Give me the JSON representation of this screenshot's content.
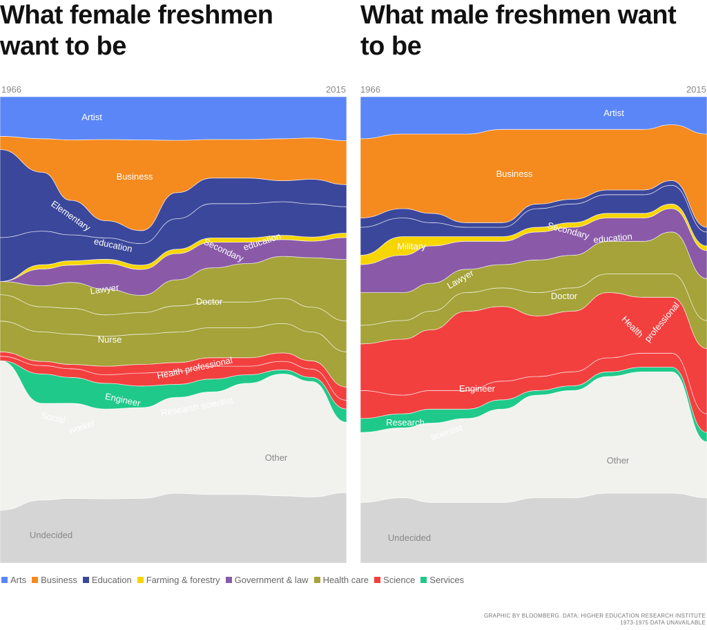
{
  "chart_data": [
    {
      "type": "area",
      "stacked": true,
      "normalized_percent": true,
      "title": "What female freshmen want to be",
      "x_start_label": "1966",
      "x_end_label": "2015",
      "x": [
        1966,
        1972,
        1976,
        1981,
        1986,
        1991,
        1996,
        2001,
        2006,
        2010,
        2015
      ],
      "series": [
        {
          "name": "Undecided",
          "category": "",
          "values": [
            12,
            15,
            15,
            15,
            15,
            16,
            16,
            16,
            16,
            16,
            16
          ]
        },
        {
          "name": "Other",
          "category": "",
          "values": [
            34,
            23,
            22,
            21,
            21,
            22,
            24,
            26,
            29,
            28,
            16
          ]
        },
        {
          "name": "Social worker",
          "category": "Services",
          "values": [
            0,
            7,
            6,
            6,
            5,
            3,
            3,
            2,
            1,
            1,
            3
          ]
        },
        {
          "name": "Research scientist",
          "category": "Science",
          "values": [
            1,
            2,
            2,
            2,
            3,
            3,
            3,
            2,
            2,
            2,
            2
          ]
        },
        {
          "name": "Engineer",
          "category": "Science",
          "values": [
            1,
            1,
            1,
            2,
            2,
            2,
            2,
            2,
            2,
            2,
            3
          ]
        },
        {
          "name": "Health professional",
          "category": "Health care",
          "values": [
            7,
            7,
            7,
            7,
            7,
            7,
            7,
            7,
            7,
            7,
            8
          ]
        },
        {
          "name": "Nurse",
          "category": "Health care",
          "values": [
            6,
            6,
            6,
            5,
            5,
            6,
            6,
            6,
            6,
            6,
            7
          ]
        },
        {
          "name": "Doctor",
          "category": "Health care",
          "values": [
            3,
            5,
            6,
            6,
            4,
            6,
            8,
            9,
            10,
            12,
            14
          ]
        },
        {
          "name": "Lawyer",
          "category": "Government & law",
          "values": [
            0,
            4,
            4,
            6,
            6,
            6,
            6,
            5,
            4,
            4,
            5
          ]
        },
        {
          "name": "Farming & forestry",
          "category": "Farming & forestry",
          "values": [
            0,
            1,
            1,
            1,
            1,
            1,
            1,
            1,
            1,
            1,
            1
          ]
        },
        {
          "name": "Secondary education",
          "category": "Education",
          "values": [
            10,
            8,
            6,
            5,
            5,
            7,
            8,
            8,
            8,
            8,
            6
          ]
        },
        {
          "name": "Elementary education",
          "category": "Education",
          "values": [
            20,
            14,
            8,
            4,
            3,
            6,
            6,
            6,
            5,
            6,
            5
          ]
        },
        {
          "name": "Business",
          "category": "Business",
          "values": [
            3,
            8,
            14,
            19,
            21,
            12,
            9,
            9,
            10,
            10,
            10
          ]
        },
        {
          "name": "Artist",
          "category": "Arts",
          "values": [
            9,
            10,
            10,
            10,
            10,
            10,
            10,
            10,
            10,
            10,
            10
          ]
        }
      ]
    },
    {
      "type": "area",
      "stacked": true,
      "normalized_percent": true,
      "title": "What male freshmen want to be",
      "x_start_label": "1966",
      "x_end_label": "2015",
      "x": [
        1966,
        1972,
        1976,
        1981,
        1986,
        1991,
        1996,
        2001,
        2006,
        2010,
        2015
      ],
      "series": [
        {
          "name": "Undecided",
          "category": "",
          "values": [
            13,
            14,
            13,
            13,
            13,
            14,
            14,
            15,
            15,
            15,
            14
          ]
        },
        {
          "name": "Other",
          "category": "",
          "values": [
            15,
            15,
            17,
            18,
            20,
            22,
            23,
            25,
            26,
            26,
            12
          ]
        },
        {
          "name": "Services",
          "category": "Services",
          "values": [
            3,
            3,
            3,
            2,
            2,
            1,
            1,
            1,
            1,
            1,
            2
          ]
        },
        {
          "name": "Research scientist",
          "category": "Science",
          "values": [
            6,
            4,
            4,
            4,
            4,
            3,
            3,
            3,
            3,
            3,
            4
          ]
        },
        {
          "name": "Engineer",
          "category": "Science",
          "values": [
            10,
            12,
            13,
            17,
            16,
            13,
            13,
            14,
            12,
            12,
            14
          ]
        },
        {
          "name": "Health professional",
          "category": "Health care",
          "values": [
            4,
            4,
            4,
            4,
            4,
            5,
            5,
            4,
            5,
            5,
            6
          ]
        },
        {
          "name": "Doctor",
          "category": "Health care",
          "values": [
            7,
            6,
            6,
            5,
            5,
            7,
            7,
            7,
            7,
            9,
            9
          ]
        },
        {
          "name": "Lawyer",
          "category": "Government & law",
          "values": [
            6,
            8,
            8,
            6,
            5,
            6,
            6,
            5,
            5,
            5,
            6
          ]
        },
        {
          "name": "Military",
          "category": "Farming & forestry",
          "values": [
            2,
            4,
            2,
            1,
            1,
            1,
            1,
            1,
            1,
            1,
            1
          ]
        },
        {
          "name": "Secondary education",
          "category": "Education",
          "values": [
            6,
            4,
            3,
            2,
            2,
            4,
            4,
            4,
            4,
            4,
            3
          ]
        },
        {
          "name": "Elementary education",
          "category": "Education",
          "values": [
            2,
            2,
            2,
            1,
            1,
            1,
            1,
            1,
            1,
            1,
            1
          ]
        },
        {
          "name": "Business",
          "category": "Business",
          "values": [
            17,
            16,
            17,
            19,
            20,
            16,
            15,
            13,
            13,
            12,
            20
          ]
        },
        {
          "name": "Artist",
          "category": "Arts",
          "values": [
            9,
            8,
            8,
            8,
            7,
            7,
            7,
            7,
            7,
            6,
            8
          ]
        }
      ]
    }
  ],
  "labels": {
    "female": [
      "Artist",
      "Business",
      "Elementary",
      "education",
      "Secondary",
      "education",
      "Lawyer",
      "Doctor",
      "Nurse",
      "Health professional",
      "Engineer",
      "Research scientist",
      "Social",
      "worker",
      "Other",
      "Undecided"
    ],
    "male": [
      "Artist",
      "Business",
      "Secondary",
      "education",
      "Military",
      "Lawyer",
      "Doctor",
      "Health",
      "professional",
      "Engineer",
      "Research",
      "scientist",
      "Other",
      "Undecided"
    ]
  },
  "legend": [
    {
      "label": "Arts",
      "color": "#5b86f7"
    },
    {
      "label": "Business",
      "color": "#f58a1f"
    },
    {
      "label": "Education",
      "color": "#3b479b"
    },
    {
      "label": "Farming & forestry",
      "color": "#f7d500"
    },
    {
      "label": "Government & law",
      "color": "#8a5aa8"
    },
    {
      "label": "Health care",
      "color": "#a5a339"
    },
    {
      "label": "Science",
      "color": "#f2403f"
    },
    {
      "label": "Services",
      "color": "#1fc98a"
    }
  ],
  "colors": {
    "Arts": "#5b86f7",
    "Business": "#f58a1f",
    "Education": "#3b479b",
    "Farming & forestry": "#f7d500",
    "Government & law": "#8a5aa8",
    "Health care": "#a5a339",
    "Science": "#f2403f",
    "Services": "#1fc98a",
    "Other": "#f1f2ee",
    "Undecided": "#d5d5d5"
  },
  "credit": {
    "line1": "GRAPHIC BY BLOOMBERG. DATA: HIGHER EDUCATION RESEARCH INSTITUTE",
    "line2": "1973-1975 DATA UNAVAILABLE"
  }
}
